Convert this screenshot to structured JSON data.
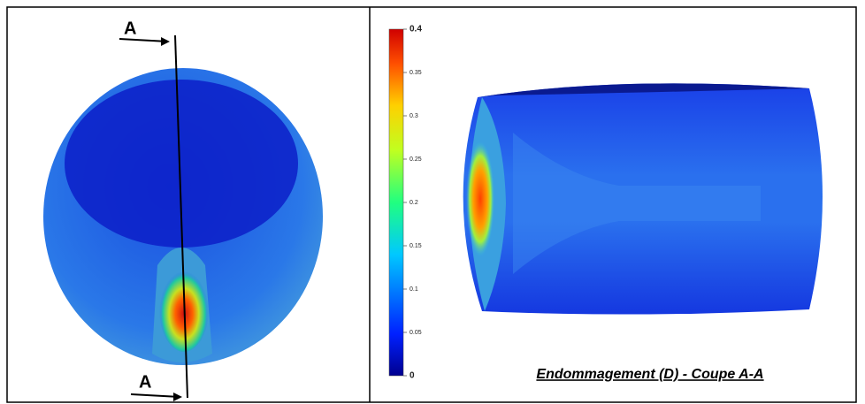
{
  "left_panel": {
    "section_labels": [
      "A",
      "A"
    ]
  },
  "colorbar": {
    "lim": [
      0,
      0.4
    ],
    "ticks": [
      0,
      0.05,
      0.1,
      0.15,
      0.2,
      0.25,
      0.3,
      0.35,
      0.4
    ]
  },
  "caption": "Endommagement (D) - Coupe A-A"
}
